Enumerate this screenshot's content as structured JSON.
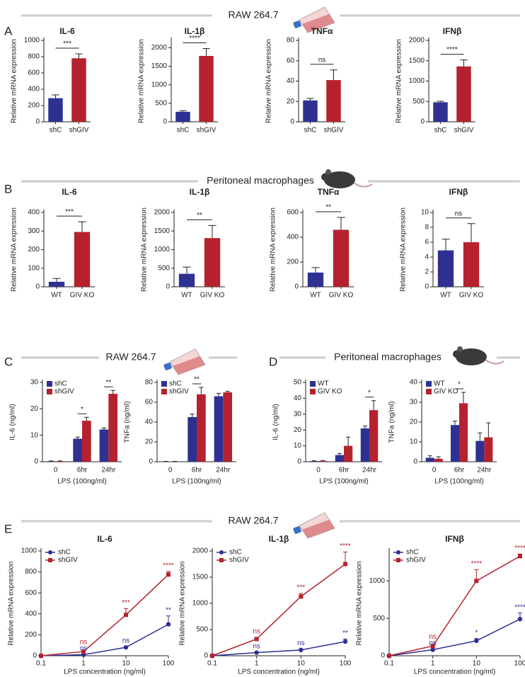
{
  "banners": [
    "RAW 264.7",
    "Peritoneal macrophages",
    "RAW 264.7",
    "Peritoneal macrophages",
    "RAW 264.7"
  ],
  "panel_labels": [
    "A",
    "B",
    "C",
    "D",
    "E"
  ],
  "chart_data": [
    {
      "type": "bar",
      "title": "IL-6",
      "ylabel": "Relative mRNA expression",
      "categories": [
        "shC",
        "shGIV"
      ],
      "values": [
        290,
        780
      ],
      "errors": [
        40,
        55
      ],
      "colors": [
        "#2e3192",
        "#b5222d"
      ],
      "ylim": [
        0,
        1000
      ],
      "yticks": [
        0,
        200,
        400,
        600,
        800,
        1000
      ],
      "significance": "***"
    },
    {
      "type": "bar",
      "title": "IL-1β",
      "ylabel": "Relative mRNA expression",
      "categories": [
        "shC",
        "shGIV"
      ],
      "values": [
        270,
        1780
      ],
      "errors": [
        30,
        200
      ],
      "colors": [
        "#2e3192",
        "#b5222d"
      ],
      "ylim": [
        0,
        2200
      ],
      "yticks": [
        0,
        500,
        1000,
        1500,
        2000
      ],
      "significance": "****"
    },
    {
      "type": "bar",
      "title": "TNFα",
      "ylabel": "Relative mRNA expression",
      "categories": [
        "shC",
        "shGIV"
      ],
      "values": [
        21,
        41
      ],
      "errors": [
        2,
        10
      ],
      "colors": [
        "#2e3192",
        "#b5222d"
      ],
      "ylim": [
        0,
        80
      ],
      "yticks": [
        0,
        20,
        40,
        60,
        80
      ],
      "significance": "ns"
    },
    {
      "type": "bar",
      "title": "IFNβ",
      "ylabel": "Relative mRNA expression",
      "categories": [
        "shC",
        "shGIV"
      ],
      "values": [
        480,
        1360
      ],
      "errors": [
        25,
        160
      ],
      "colors": [
        "#2e3192",
        "#b5222d"
      ],
      "ylim": [
        0,
        2000
      ],
      "yticks": [
        0,
        500,
        1000,
        1500,
        2000
      ],
      "significance": "****"
    },
    {
      "type": "bar",
      "title": "IL-6",
      "ylabel": "Relative mRNA expression",
      "categories": [
        "WT",
        "GIV KO"
      ],
      "values": [
        27,
        295
      ],
      "errors": [
        18,
        55
      ],
      "colors": [
        "#2e3192",
        "#b5222d"
      ],
      "ylim": [
        0,
        400
      ],
      "yticks": [
        0,
        100,
        200,
        300,
        400
      ],
      "significance": "***"
    },
    {
      "type": "bar",
      "title": "IL-1β",
      "ylabel": "Relative mRNA expression",
      "categories": [
        "WT",
        "GIV KO"
      ],
      "values": [
        350,
        1310
      ],
      "errors": [
        180,
        340
      ],
      "colors": [
        "#2e3192",
        "#b5222d"
      ],
      "ylim": [
        0,
        2000
      ],
      "yticks": [
        0,
        500,
        1000,
        1500,
        2000
      ],
      "significance": "**"
    },
    {
      "type": "bar",
      "title": "TNFα",
      "ylabel": "Relative mRNA expression",
      "categories": [
        "WT",
        "GIV KO"
      ],
      "values": [
        115,
        460
      ],
      "errors": [
        40,
        100
      ],
      "colors": [
        "#2e3192",
        "#b5222d"
      ],
      "ylim": [
        0,
        600
      ],
      "yticks": [
        0,
        200,
        400,
        600
      ],
      "significance": "**"
    },
    {
      "type": "bar",
      "title": "IFNβ",
      "ylabel": "Relative mRNA expression",
      "categories": [
        "WT",
        "GIV KO"
      ],
      "values": [
        4.9,
        6.0
      ],
      "errors": [
        1.5,
        2.5
      ],
      "colors": [
        "#2e3192",
        "#b5222d"
      ],
      "ylim": [
        0,
        10
      ],
      "yticks": [
        0,
        2,
        4,
        6,
        8,
        10
      ],
      "significance": "ns"
    },
    {
      "type": "grouped_bar",
      "ylabel": "IL-6 (ng/ml)",
      "xlabel": "LPS (100ng/ml)",
      "categories": [
        "0",
        "6hr",
        "24hr"
      ],
      "series": [
        {
          "name": "shC",
          "color": "#2e3192",
          "values": [
            0.2,
            8.7,
            12.2
          ],
          "errors": [
            0.1,
            0.6,
            0.6
          ]
        },
        {
          "name": "shGIV",
          "color": "#b5222d",
          "values": [
            0.2,
            15.5,
            25.7
          ],
          "errors": [
            0.1,
            1.3,
            1.3
          ]
        }
      ],
      "ylim": [
        0,
        30
      ],
      "yticks": [
        0,
        10,
        20,
        30
      ],
      "significance": [
        null,
        "*",
        "**"
      ],
      "legend": "upper left"
    },
    {
      "type": "grouped_bar",
      "ylabel": "TNFa (ng/ml)",
      "xlabel": "LPS (100ng/ml)",
      "categories": [
        "0",
        "6hr",
        "24hr"
      ],
      "series": [
        {
          "name": "shC",
          "color": "#2e3192",
          "values": [
            0.3,
            45,
            66
          ],
          "errors": [
            0.1,
            3,
            3
          ]
        },
        {
          "name": "shGIV",
          "color": "#b5222d",
          "values": [
            0.3,
            68,
            70
          ],
          "errors": [
            0.1,
            7,
            1
          ]
        }
      ],
      "ylim": [
        0,
        80
      ],
      "yticks": [
        0,
        20,
        40,
        60,
        80
      ],
      "significance": [
        null,
        "**",
        null
      ],
      "legend": "upper left"
    },
    {
      "type": "grouped_bar",
      "ylabel": "IL-6 (ng/ml)",
      "xlabel": "LPS (100ng/ml)",
      "categories": [
        "0",
        "6hr",
        "24hr"
      ],
      "series": [
        {
          "name": "WT",
          "color": "#2e3192",
          "values": [
            0.4,
            4.2,
            21
          ],
          "errors": [
            0.2,
            1,
            1.5
          ]
        },
        {
          "name": "GIV KO",
          "color": "#b5222d",
          "values": [
            0.5,
            10,
            32.5
          ],
          "errors": [
            0.3,
            5.5,
            6
          ]
        }
      ],
      "ylim": [
        0,
        50
      ],
      "yticks": [
        0,
        10,
        20,
        30,
        40,
        50
      ],
      "significance": [
        null,
        null,
        "*"
      ],
      "legend": "upper left"
    },
    {
      "type": "grouped_bar",
      "ylabel": "TNFa (ng/ml)",
      "xlabel": "LPS (100ng/ml)",
      "categories": [
        "0",
        "6hr",
        "24hr"
      ],
      "series": [
        {
          "name": "WT",
          "color": "#2e3192",
          "values": [
            2,
            18.5,
            10.5
          ],
          "errors": [
            1,
            2,
            4
          ]
        },
        {
          "name": "GIV KO",
          "color": "#b5222d",
          "values": [
            1.5,
            29.5,
            12.3
          ],
          "errors": [
            1,
            5.5,
            7.3
          ]
        }
      ],
      "ylim": [
        0,
        40
      ],
      "yticks": [
        0,
        10,
        20,
        30,
        40
      ],
      "significance": [
        null,
        "*",
        null
      ],
      "legend": "upper left"
    },
    {
      "type": "line",
      "title": "IL-6",
      "ylabel": "Relative mRNA expression",
      "xlabel": "LPS concentration (ng/ml)",
      "xscale": "log",
      "x": [
        0.1,
        1,
        10,
        100
      ],
      "xlim": [
        0.1,
        100
      ],
      "xticks": [
        0.1,
        1,
        10,
        100
      ],
      "ylim": [
        0,
        1000
      ],
      "yticks": [
        0,
        200,
        400,
        600,
        800,
        1000
      ],
      "legend": "upper left",
      "series": [
        {
          "name": "shC",
          "color": "#2e3192",
          "marker": "circle",
          "values": [
            0,
            10,
            80,
            300
          ],
          "errors": [
            0,
            5,
            10,
            80
          ],
          "significance": [
            null,
            "ns",
            "ns",
            "**"
          ]
        },
        {
          "name": "shGIV",
          "color": "#b5222d",
          "marker": "square",
          "values": [
            0,
            40,
            390,
            775
          ],
          "errors": [
            0,
            10,
            60,
            30
          ],
          "significance": [
            null,
            "ns",
            "***",
            "****"
          ]
        }
      ]
    },
    {
      "type": "line",
      "title": "IL-1β",
      "ylabel": "Relative mRNA expression",
      "xlabel": "LPS concentration (ng/ml)",
      "xscale": "log",
      "x": [
        0.1,
        1,
        10,
        100
      ],
      "xlim": [
        0.1,
        100
      ],
      "xticks": [
        0.1,
        1,
        10,
        100
      ],
      "ylim": [
        0,
        2000
      ],
      "yticks": [
        0,
        500,
        1000,
        1500,
        2000
      ],
      "legend": "upper left",
      "series": [
        {
          "name": "shC",
          "color": "#2e3192",
          "marker": "circle",
          "values": [
            0,
            60,
            110,
            270
          ],
          "errors": [
            0,
            10,
            20,
            50
          ],
          "significance": [
            null,
            "ns",
            "ns",
            "**"
          ]
        },
        {
          "name": "shGIV",
          "color": "#b5222d",
          "marker": "square",
          "values": [
            0,
            320,
            1130,
            1750
          ],
          "errors": [
            0,
            30,
            60,
            230
          ],
          "significance": [
            null,
            "ns",
            "***",
            "****"
          ]
        }
      ]
    },
    {
      "type": "line",
      "title": "IFNβ",
      "ylabel": "Relative mRNA expression",
      "xlabel": "LPS concentration (ng/ml)",
      "xscale": "log",
      "x": [
        0.1,
        1,
        10,
        100
      ],
      "xlim": [
        0.1,
        100
      ],
      "xticks": [
        0.1,
        1,
        10,
        100
      ],
      "ylim": [
        0,
        1400
      ],
      "yticks": [
        0,
        500,
        1000
      ],
      "legend": "upper left",
      "series": [
        {
          "name": "shC",
          "color": "#2e3192",
          "marker": "circle",
          "values": [
            0,
            80,
            200,
            490
          ],
          "errors": [
            0,
            10,
            30,
            80
          ],
          "significance": [
            null,
            "ns",
            "*",
            "****"
          ]
        },
        {
          "name": "shGIV",
          "color": "#b5222d",
          "marker": "square",
          "values": [
            0,
            130,
            1000,
            1330
          ],
          "errors": [
            0,
            20,
            150,
            30
          ],
          "significance": [
            null,
            "ns",
            "****",
            "****"
          ]
        }
      ]
    }
  ]
}
